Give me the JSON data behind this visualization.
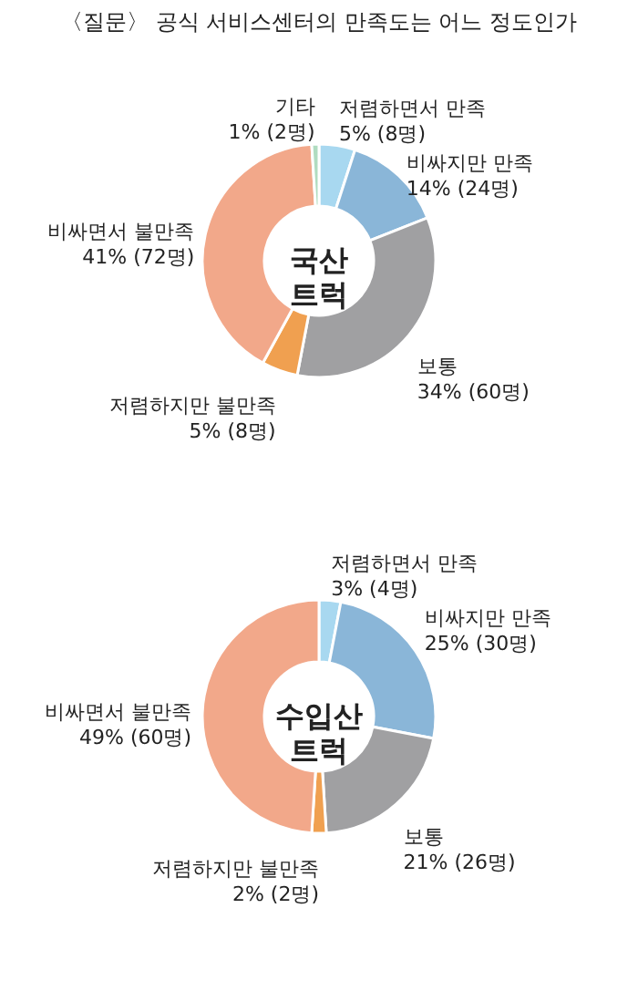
{
  "chart_data": [
    {
      "type": "donut",
      "title": "〈질문〉 공식 서비스센터의 만족도는 어느 정도인가",
      "categories": [
        "저렴하면서 만족",
        "비싸지만 만족",
        "보통",
        "저렴하지만 불만족",
        "비싸면서 불만족",
        "기타"
      ],
      "values": [
        5,
        14,
        34,
        5,
        41,
        1
      ],
      "colors": [
        "#a8d8f0",
        "#8ab6d8",
        "#a0a0a2",
        "#f0a050",
        "#f2a88a",
        "#b0dcc0"
      ],
      "value_labels": [
        "5% (8명)",
        "14% (24명)",
        "34% (60명)",
        "5% (8명)",
        "41% (72명)",
        "1% (2명)"
      ],
      "annotations": [
        "국산 트럭"
      ]
    },
    {
      "type": "donut",
      "categories": [
        "저렴하면서 만족",
        "비싸지만 만족",
        "보통",
        "저렴하지만 불만족",
        "비싸면서 불만족"
      ],
      "values": [
        3,
        25,
        21,
        2,
        49
      ],
      "colors": [
        "#a8d8f0",
        "#8ab6d8",
        "#a0a0a2",
        "#f0a050",
        "#f2a88a"
      ],
      "value_labels": [
        "3% (4명)",
        "25% (30명)",
        "21% (26명)",
        "2% (2명)",
        "49% (60명)"
      ],
      "annotations": [
        "수입산 트럭"
      ]
    }
  ]
}
